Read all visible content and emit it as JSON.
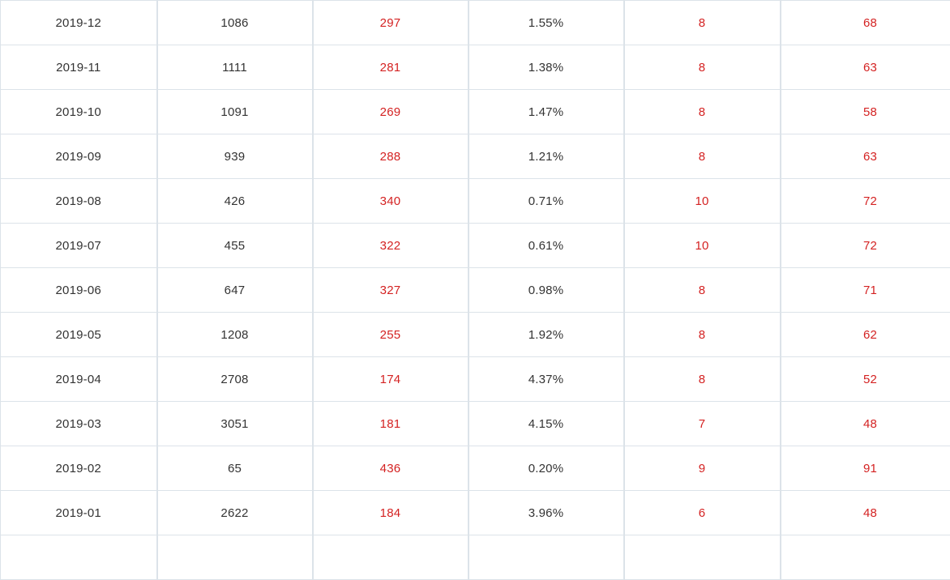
{
  "colors": {
    "red-color": "#d42222",
    "text-color": "#333333",
    "border-color": "#dce3e9"
  },
  "table": {
    "columns": [
      {
        "key": "month",
        "color": "dark"
      },
      {
        "key": "count",
        "color": "dark"
      },
      {
        "key": "value_a",
        "color": "red"
      },
      {
        "key": "percent",
        "color": "dark"
      },
      {
        "key": "value_b",
        "color": "red"
      },
      {
        "key": "value_c",
        "color": "red"
      }
    ],
    "rows": [
      {
        "month": "2019-12",
        "count": "1086",
        "value_a": "297",
        "percent": "1.55%",
        "value_b": "8",
        "value_c": "68"
      },
      {
        "month": "2019-11",
        "count": "1111",
        "value_a": "281",
        "percent": "1.38%",
        "value_b": "8",
        "value_c": "63"
      },
      {
        "month": "2019-10",
        "count": "1091",
        "value_a": "269",
        "percent": "1.47%",
        "value_b": "8",
        "value_c": "58"
      },
      {
        "month": "2019-09",
        "count": "939",
        "value_a": "288",
        "percent": "1.21%",
        "value_b": "8",
        "value_c": "63"
      },
      {
        "month": "2019-08",
        "count": "426",
        "value_a": "340",
        "percent": "0.71%",
        "value_b": "10",
        "value_c": "72"
      },
      {
        "month": "2019-07",
        "count": "455",
        "value_a": "322",
        "percent": "0.61%",
        "value_b": "10",
        "value_c": "72"
      },
      {
        "month": "2019-06",
        "count": "647",
        "value_a": "327",
        "percent": "0.98%",
        "value_b": "8",
        "value_c": "71"
      },
      {
        "month": "2019-05",
        "count": "1208",
        "value_a": "255",
        "percent": "1.92%",
        "value_b": "8",
        "value_c": "62"
      },
      {
        "month": "2019-04",
        "count": "2708",
        "value_a": "174",
        "percent": "4.37%",
        "value_b": "8",
        "value_c": "52"
      },
      {
        "month": "2019-03",
        "count": "3051",
        "value_a": "181",
        "percent": "4.15%",
        "value_b": "7",
        "value_c": "48"
      },
      {
        "month": "2019-02",
        "count": "65",
        "value_a": "436",
        "percent": "0.20%",
        "value_b": "9",
        "value_c": "91"
      },
      {
        "month": "2019-01",
        "count": "2622",
        "value_a": "184",
        "percent": "3.96%",
        "value_b": "6",
        "value_c": "48"
      }
    ]
  }
}
